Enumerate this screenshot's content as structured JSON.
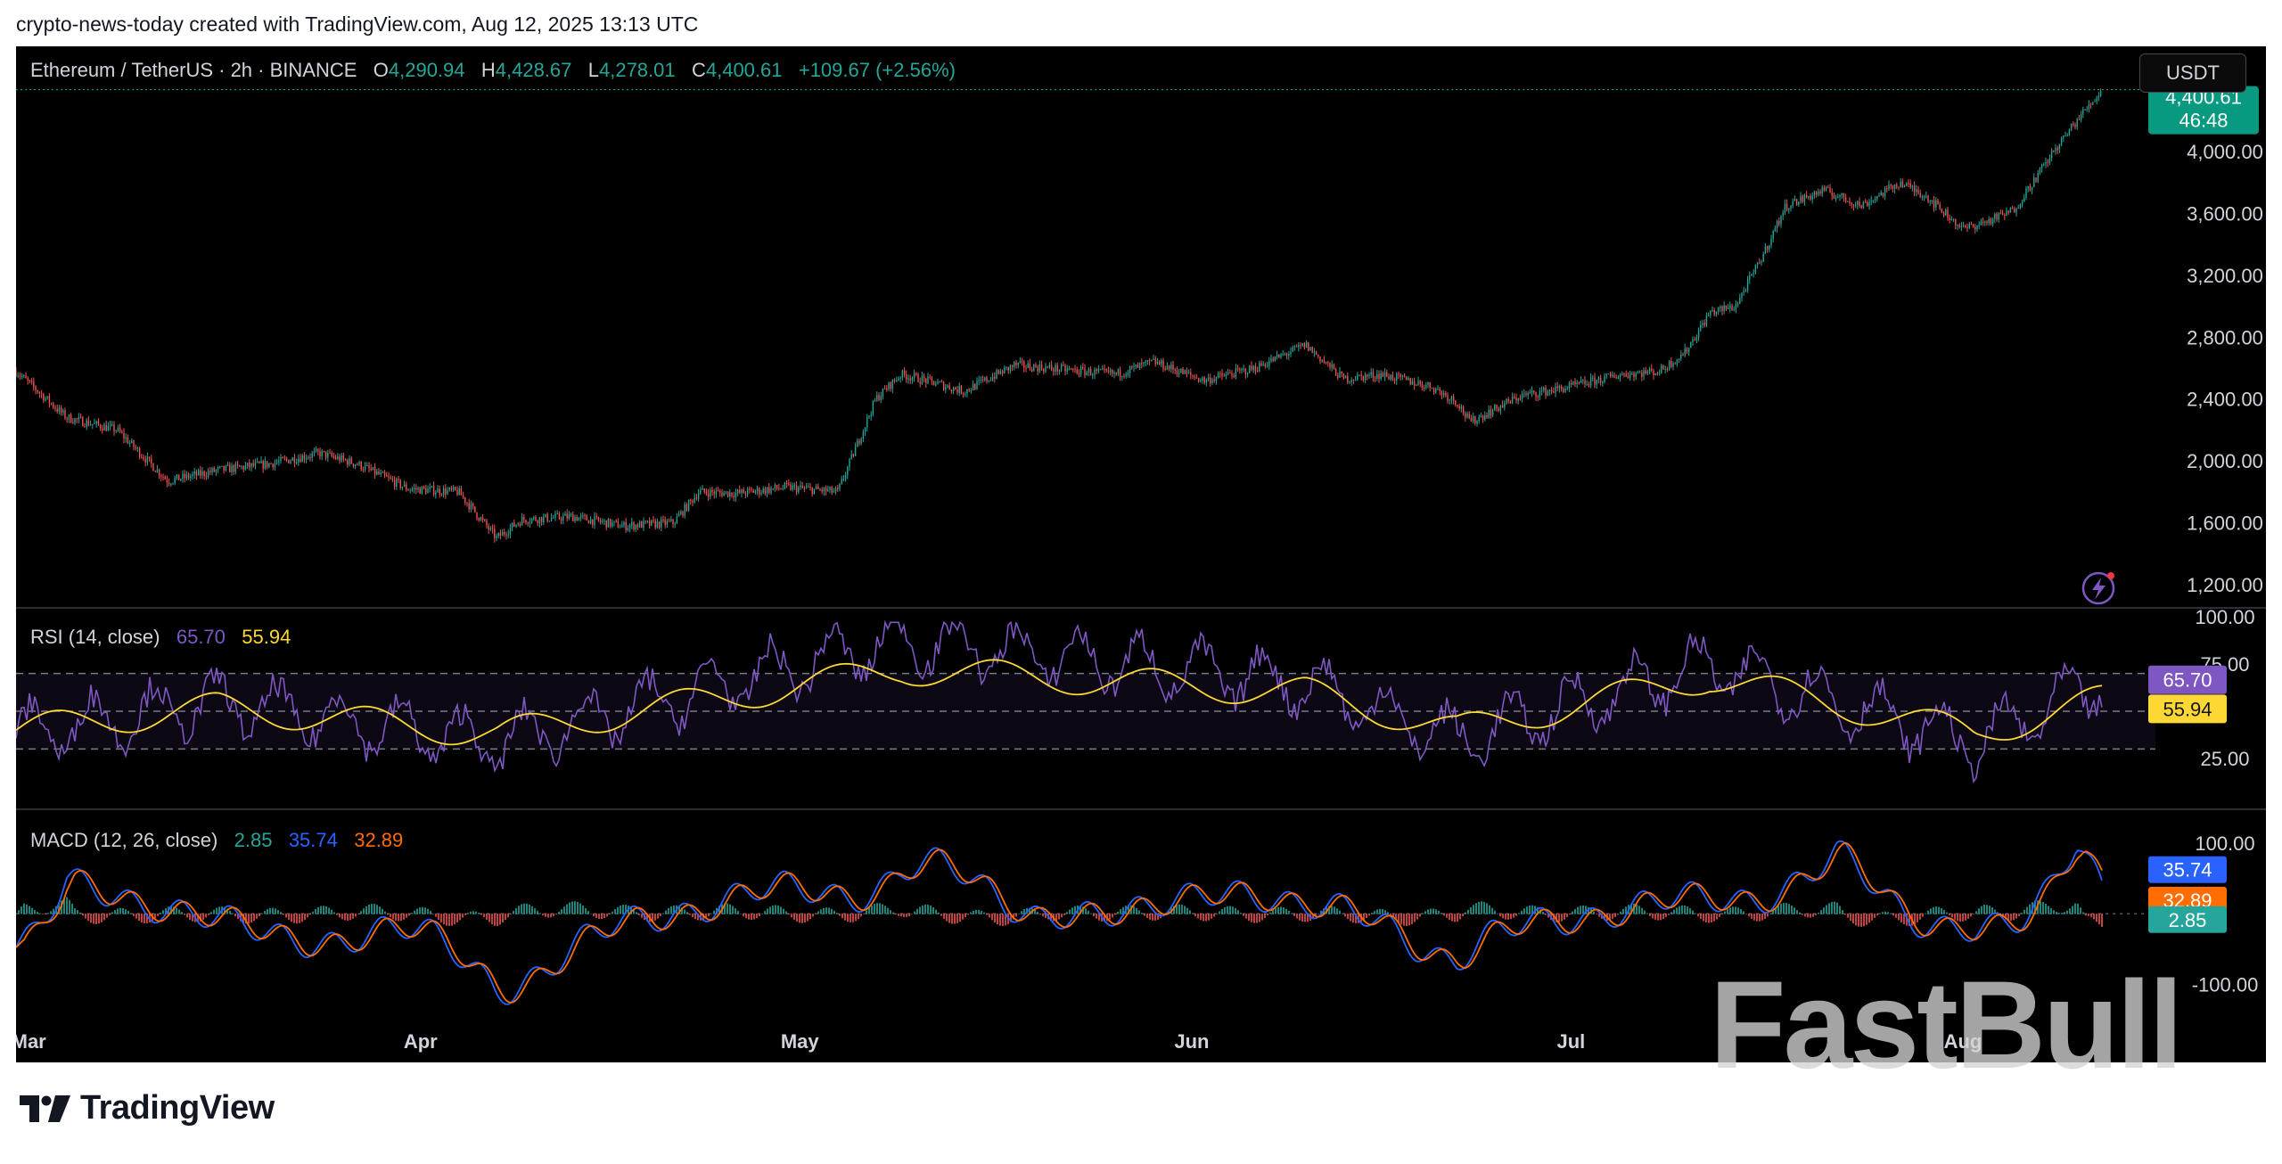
{
  "header": {
    "attribution": "crypto-news-today created with TradingView.com, Aug 12, 2025 13:13 UTC"
  },
  "legend": {
    "symbol": "Ethereum / TetherUS · 2h · BINANCE",
    "o_label": "O",
    "o_value": "4,290.94",
    "h_label": "H",
    "h_value": "4,428.67",
    "l_label": "L",
    "l_value": "4,278.01",
    "c_label": "C",
    "c_value": "4,400.61",
    "change": "+109.67 (+2.56%)"
  },
  "currency": "USDT",
  "price_badge": {
    "value": "4,400.61",
    "countdown": "46:48"
  },
  "rsi_legend": {
    "name": "RSI (14, close)",
    "rsi": "65.70",
    "ma": "55.94"
  },
  "macd_legend": {
    "name": "MACD (12, 26, close)",
    "hist": "2.85",
    "macd": "35.74",
    "signal": "32.89"
  },
  "footer_logo": "TradingView",
  "watermark": "FastBull",
  "colors": {
    "up": "#26a69a",
    "down": "#ef5350",
    "rsi": "#7e57c2",
    "rsi_ma": "#fdd835",
    "macd": "#2962ff",
    "signal": "#ff6d00",
    "background": "#000000"
  },
  "chart_data": [
    {
      "type": "candlestick",
      "title": "Ethereum / TetherUS · 2h · BINANCE",
      "y_ticks": [
        "4,000.00",
        "3,600.00",
        "3,200.00",
        "2,800.00",
        "2,400.00",
        "2,000.00",
        "1,600.00",
        "1,200.00"
      ],
      "ylim": [
        1050,
        4450
      ],
      "x_ticks": [
        "Mar",
        "Apr",
        "May",
        "Jun",
        "Jul",
        "Aug"
      ],
      "x": [
        "2025-02-28",
        "2025-03-04",
        "2025-03-08",
        "2025-03-12",
        "2025-03-16",
        "2025-03-20",
        "2025-03-24",
        "2025-03-27",
        "2025-03-31",
        "2025-04-04",
        "2025-04-07",
        "2025-04-09",
        "2025-04-13",
        "2025-04-17",
        "2025-04-21",
        "2025-04-23",
        "2025-04-26",
        "2025-04-30",
        "2025-05-04",
        "2025-05-07",
        "2025-05-09",
        "2025-05-11",
        "2025-05-14",
        "2025-05-18",
        "2025-05-22",
        "2025-05-26",
        "2025-05-29",
        "2025-06-02",
        "2025-06-06",
        "2025-06-10",
        "2025-06-13",
        "2025-06-16",
        "2025-06-20",
        "2025-06-22",
        "2025-06-23",
        "2025-06-27",
        "2025-07-01",
        "2025-07-05",
        "2025-07-08",
        "2025-07-10",
        "2025-07-12",
        "2025-07-14",
        "2025-07-16",
        "2025-07-18",
        "2025-07-21",
        "2025-07-24",
        "2025-07-27",
        "2025-07-29",
        "2025-08-01",
        "2025-08-03",
        "2025-08-05",
        "2025-08-08",
        "2025-08-10",
        "2025-08-12"
      ],
      "close": [
        2580,
        2280,
        2200,
        1870,
        1940,
        1980,
        2050,
        1980,
        1820,
        1800,
        1500,
        1620,
        1640,
        1580,
        1600,
        1800,
        1790,
        1830,
        1800,
        2400,
        2560,
        2520,
        2450,
        2620,
        2590,
        2560,
        2640,
        2520,
        2600,
        2750,
        2530,
        2560,
        2480,
        2380,
        2250,
        2420,
        2480,
        2560,
        2580,
        2700,
        2960,
        3000,
        3300,
        3650,
        3750,
        3650,
        3800,
        3720,
        3500,
        3550,
        3620,
        3980,
        4200,
        4400
      ]
    },
    {
      "type": "line",
      "title": "RSI (14, close)",
      "y_ticks": [
        "100.00",
        "75.00",
        "25.00"
      ],
      "bands": [
        70,
        50,
        30
      ],
      "ylim": [
        0,
        100
      ],
      "x": [
        "2025-02-28",
        "2025-03-16",
        "2025-04-07",
        "2025-05-09",
        "2025-06-10",
        "2025-06-22",
        "2025-07-12",
        "2025-08-02",
        "2025-08-12"
      ],
      "series": [
        {
          "name": "RSI",
          "values": [
            38,
            55,
            33,
            88,
            65,
            35,
            75,
            33,
            65.7
          ]
        },
        {
          "name": "MA",
          "values": [
            40,
            52,
            38,
            72,
            60,
            40,
            68,
            38,
            55.94
          ]
        }
      ]
    },
    {
      "type": "line",
      "title": "MACD (12, 26, close)",
      "y_ticks": [
        "100.00",
        "-100.00"
      ],
      "ylim": [
        -150,
        130
      ],
      "x": [
        "2025-02-28",
        "2025-03-04",
        "2025-04-07",
        "2025-05-09",
        "2025-05-20",
        "2025-06-10",
        "2025-06-22",
        "2025-07-16",
        "2025-07-22",
        "2025-08-02",
        "2025-08-10",
        "2025-08-12"
      ],
      "series": [
        {
          "name": "MACD",
          "values": [
            -80,
            50,
            -120,
            125,
            -20,
            60,
            -90,
            80,
            100,
            -110,
            105,
            35.74
          ]
        },
        {
          "name": "Signal",
          "values": [
            -60,
            30,
            -100,
            110,
            -10,
            50,
            -75,
            65,
            90,
            -95,
            95,
            32.89
          ]
        },
        {
          "name": "Histogram",
          "values": [
            -20,
            20,
            -20,
            15,
            -10,
            10,
            -15,
            15,
            10,
            -15,
            10,
            2.85
          ]
        }
      ]
    }
  ]
}
